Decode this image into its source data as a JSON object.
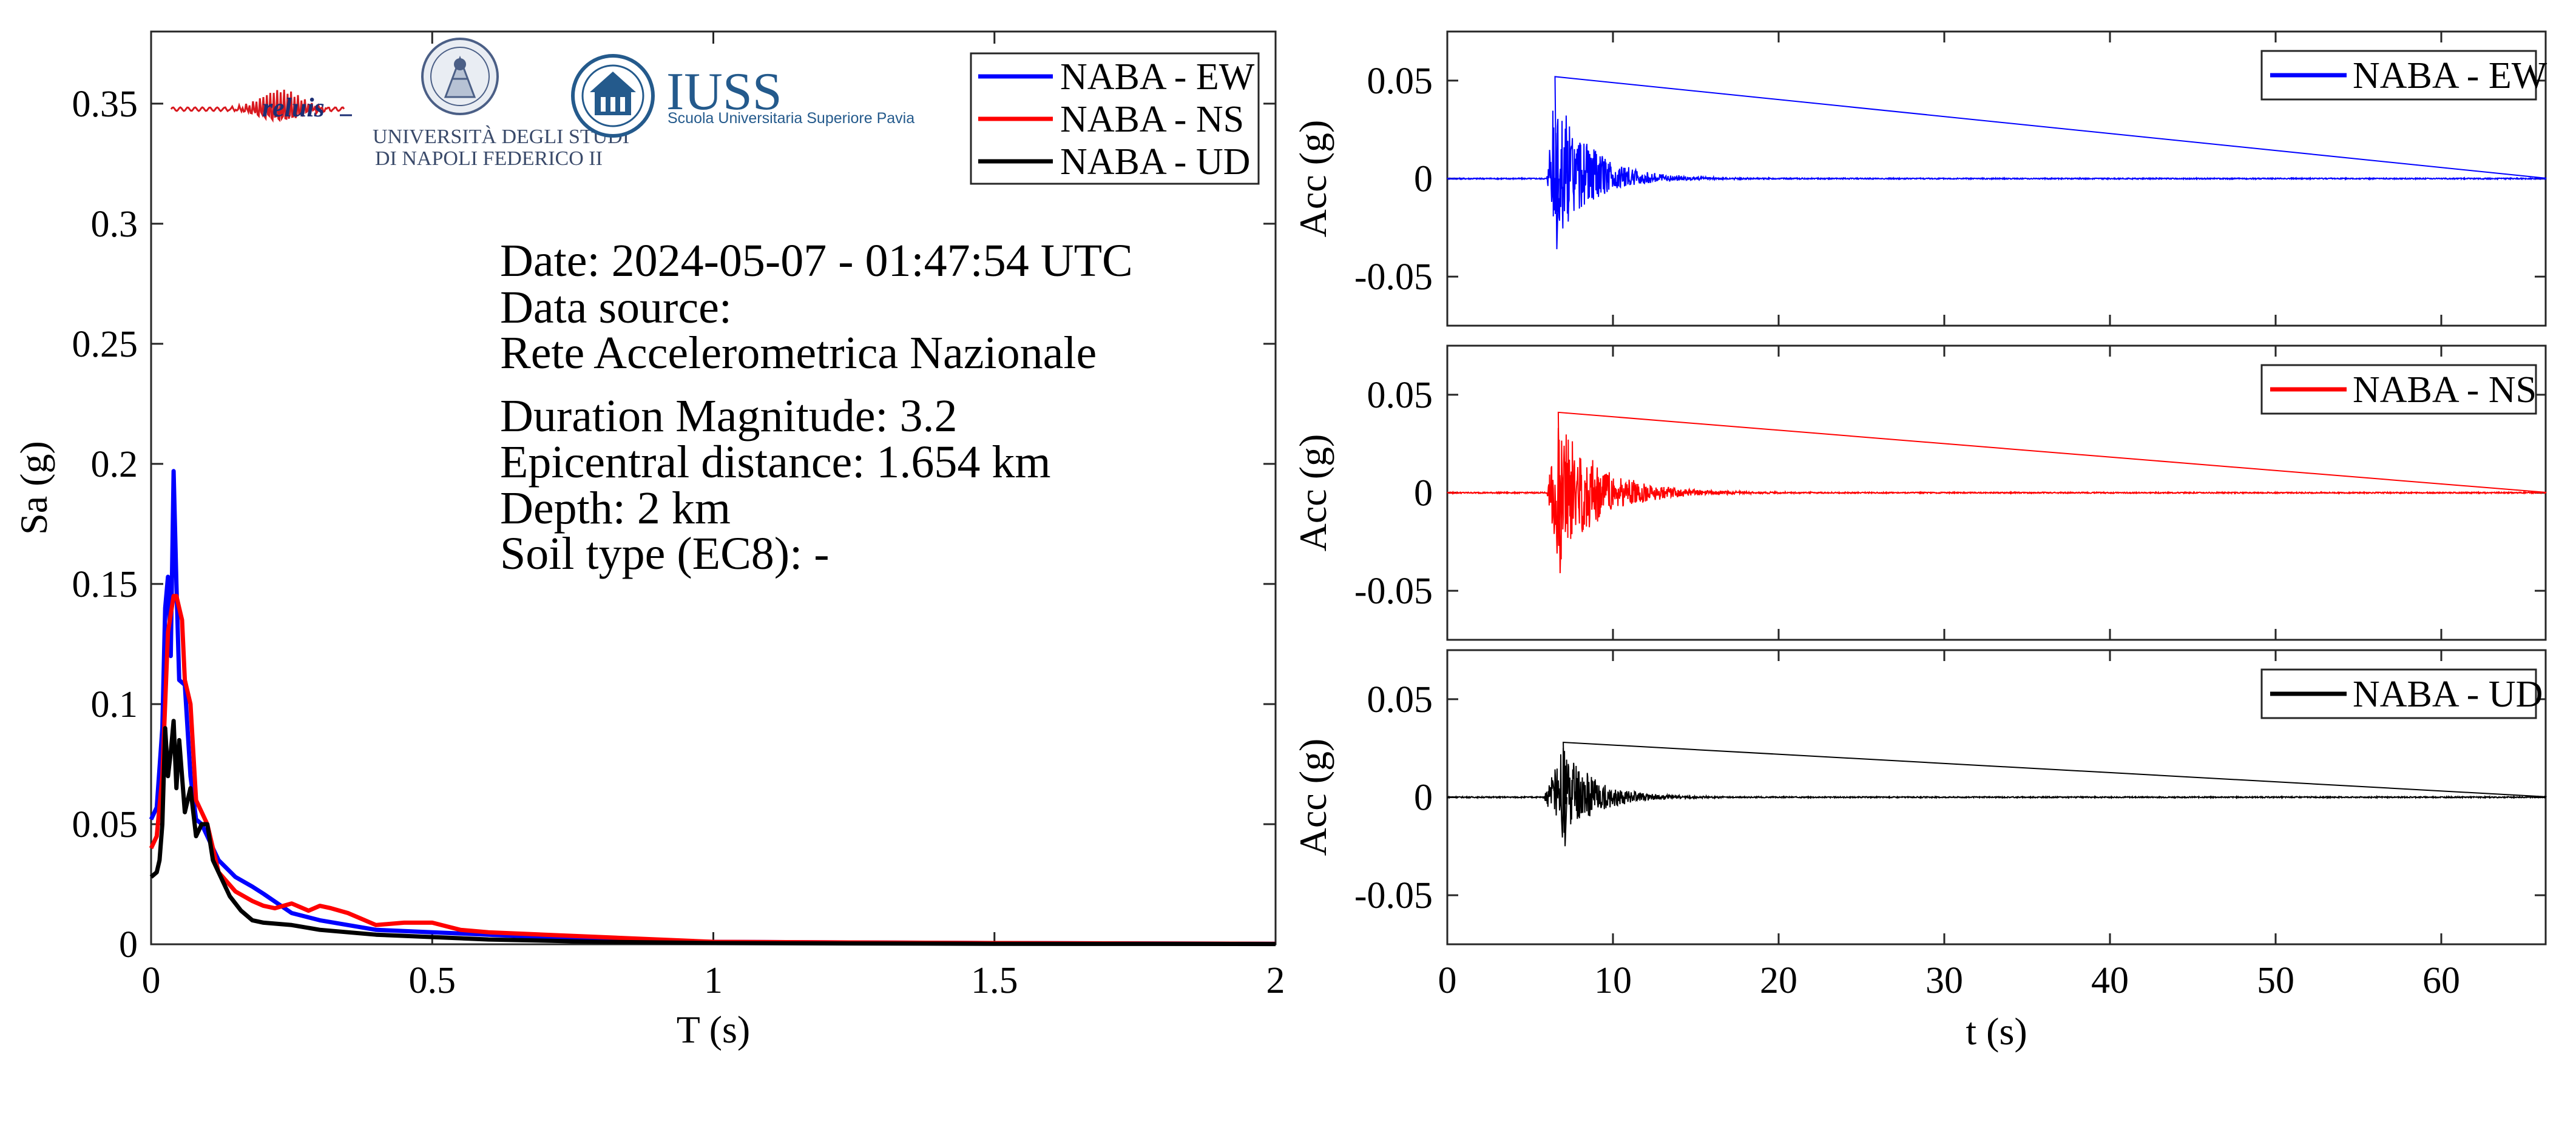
{
  "logos": {
    "reluis": "reluis",
    "unina_line1": "UNIVERSITÀ DEGLI STUDI",
    "unina_line2": "DI NAPOLI FEDERICO II",
    "iuss_title": "IUSS",
    "iuss_subtitle": "Scuola Universitaria Superiore Pavia"
  },
  "event_info": {
    "date": "Date: 2024-05-07 - 01:47:54 UTC",
    "data_source_label": "Data source:",
    "data_source": "Rete Accelerometrica Nazionale",
    "magnitude": "Duration Magnitude: 3.2",
    "distance": "Epicentral distance: 1.654 km",
    "depth": "Depth: 2 km",
    "soil": "Soil type (EC8): -"
  },
  "colors": {
    "EW": "#0000ff",
    "NS": "#ff0000",
    "UD": "#000000"
  },
  "chart_data": [
    {
      "type": "line",
      "xlabel": "T (s)",
      "ylabel": "Sa (g)",
      "xlim": [
        0,
        2
      ],
      "ylim": [
        0,
        0.38
      ],
      "x_ticks": [
        0,
        0.5,
        1,
        1.5,
        2
      ],
      "x_tick_labels": [
        "0",
        "0.5",
        "1",
        "1.5",
        "2"
      ],
      "y_ticks": [
        0,
        0.05,
        0.1,
        0.15,
        0.2,
        0.25,
        0.3,
        0.35
      ],
      "y_tick_labels": [
        "0",
        "0.05",
        "0.1",
        "0.15",
        "0.2",
        "0.25",
        "0.3",
        "0.35"
      ],
      "legend_position": "top-right",
      "series": [
        {
          "name": "NABA - EW",
          "color": "#0000ff",
          "x": [
            0,
            0.01,
            0.02,
            0.025,
            0.03,
            0.035,
            0.04,
            0.045,
            0.05,
            0.06,
            0.07,
            0.08,
            0.09,
            0.1,
            0.12,
            0.15,
            0.18,
            0.2,
            0.25,
            0.3,
            0.4,
            0.5,
            0.6,
            0.8,
            1.0,
            1.5,
            2.0
          ],
          "y": [
            0.052,
            0.057,
            0.09,
            0.14,
            0.153,
            0.12,
            0.197,
            0.15,
            0.11,
            0.108,
            0.07,
            0.052,
            0.05,
            0.045,
            0.035,
            0.028,
            0.024,
            0.021,
            0.013,
            0.01,
            0.006,
            0.005,
            0.004,
            0.002,
            0.001,
            0.0005,
            0.0002
          ]
        },
        {
          "name": "NABA - NS",
          "color": "#ff0000",
          "x": [
            0,
            0.01,
            0.02,
            0.03,
            0.04,
            0.045,
            0.05,
            0.055,
            0.06,
            0.07,
            0.08,
            0.09,
            0.1,
            0.12,
            0.15,
            0.18,
            0.2,
            0.22,
            0.25,
            0.28,
            0.3,
            0.32,
            0.35,
            0.38,
            0.4,
            0.45,
            0.5,
            0.55,
            0.6,
            0.7,
            0.8,
            1.0,
            1.5,
            2.0
          ],
          "y": [
            0.04,
            0.045,
            0.07,
            0.13,
            0.145,
            0.145,
            0.14,
            0.135,
            0.11,
            0.1,
            0.06,
            0.055,
            0.05,
            0.03,
            0.022,
            0.018,
            0.016,
            0.015,
            0.017,
            0.014,
            0.016,
            0.015,
            0.013,
            0.01,
            0.008,
            0.009,
            0.009,
            0.006,
            0.005,
            0.004,
            0.003,
            0.001,
            0.0005,
            0.0002
          ]
        },
        {
          "name": "NABA - UD",
          "color": "#000000",
          "x": [
            0,
            0.01,
            0.015,
            0.02,
            0.025,
            0.03,
            0.035,
            0.04,
            0.045,
            0.05,
            0.06,
            0.07,
            0.08,
            0.09,
            0.1,
            0.11,
            0.12,
            0.14,
            0.16,
            0.18,
            0.2,
            0.25,
            0.3,
            0.35,
            0.4,
            0.5,
            0.6,
            0.8,
            1.0,
            1.5,
            2.0
          ],
          "y": [
            0.028,
            0.03,
            0.035,
            0.05,
            0.09,
            0.07,
            0.08,
            0.093,
            0.065,
            0.085,
            0.055,
            0.065,
            0.045,
            0.05,
            0.05,
            0.035,
            0.03,
            0.02,
            0.014,
            0.01,
            0.009,
            0.008,
            0.006,
            0.005,
            0.004,
            0.003,
            0.002,
            0.001,
            0.0005,
            0.0002,
            0.0001
          ]
        }
      ]
    },
    {
      "type": "line",
      "xlabel": "",
      "ylabel": "Acc (g)",
      "xlim": [
        0,
        66.3
      ],
      "ylim": [
        -0.075,
        0.075
      ],
      "x_ticks": [
        0,
        10,
        20,
        30,
        40,
        50,
        60
      ],
      "y_ticks": [
        -0.05,
        0,
        0.05
      ],
      "y_tick_labels": [
        "-0.05",
        "0",
        "0.05"
      ],
      "legend_position": "top-right",
      "series": [
        {
          "name": "NABA - EW",
          "color": "#0000ff",
          "onset": 6.0,
          "peak_time": 6.5,
          "peak_pos": 0.052,
          "peak_neg": -0.036,
          "coda_end": 15
        }
      ]
    },
    {
      "type": "line",
      "xlabel": "",
      "ylabel": "Acc (g)",
      "xlim": [
        0,
        66.3
      ],
      "ylim": [
        -0.075,
        0.075
      ],
      "x_ticks": [
        0,
        10,
        20,
        30,
        40,
        50,
        60
      ],
      "y_ticks": [
        -0.05,
        0,
        0.05
      ],
      "y_tick_labels": [
        "-0.05",
        "0",
        "0.05"
      ],
      "legend_position": "top-right",
      "series": [
        {
          "name": "NABA - NS",
          "color": "#ff0000",
          "onset": 6.0,
          "peak_time": 6.7,
          "peak_pos": 0.041,
          "peak_neg": -0.041,
          "coda_end": 17
        }
      ]
    },
    {
      "type": "line",
      "xlabel": "t (s)",
      "ylabel": "Acc (g)",
      "xlim": [
        0,
        66.3
      ],
      "ylim": [
        -0.075,
        0.075
      ],
      "x_ticks": [
        0,
        10,
        20,
        30,
        40,
        50,
        60
      ],
      "x_tick_labels": [
        "0",
        "10",
        "20",
        "30",
        "40",
        "50",
        "60"
      ],
      "y_ticks": [
        -0.05,
        0,
        0.05
      ],
      "y_tick_labels": [
        "-0.05",
        "0",
        "0.05"
      ],
      "legend_position": "top-right",
      "series": [
        {
          "name": "NABA - UD",
          "color": "#000000",
          "onset": 5.8,
          "peak_time": 7.0,
          "peak_pos": 0.028,
          "peak_neg": -0.025,
          "coda_end": 15
        }
      ]
    }
  ]
}
